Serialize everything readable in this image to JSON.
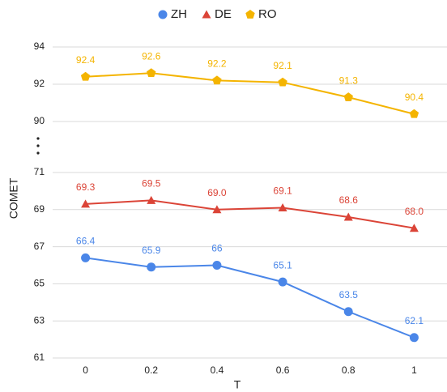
{
  "chart_data": [
    {
      "type": "line",
      "ylim": [
        90,
        94
      ],
      "yticks": [
        90,
        92,
        94
      ],
      "grid": true,
      "series": [
        {
          "name": "RO",
          "color": "#f4b400",
          "marker": "pentagon",
          "values": [
            92.4,
            92.6,
            92.2,
            92.1,
            91.3,
            90.4
          ]
        }
      ]
    },
    {
      "type": "line",
      "x_label": "T",
      "y_label": "COMET",
      "legend": "top",
      "categories": [
        "0",
        "0.2",
        "0.4",
        "0.6",
        "0.8",
        "1"
      ],
      "ylim": [
        61,
        71
      ],
      "yticks": [
        61,
        63,
        65,
        67,
        69,
        71
      ],
      "grid": true,
      "series": [
        {
          "name": "ZH",
          "color": "#4a86e8",
          "marker": "circle",
          "values": [
            66.4,
            65.9,
            66,
            65.1,
            63.5,
            62.1
          ]
        },
        {
          "name": "DE",
          "color": "#db4437",
          "marker": "triangle",
          "values": [
            69.3,
            69.5,
            69.0,
            69.1,
            68.6,
            68.0
          ],
          "value_labels": [
            "69.3",
            "69.5",
            "69.0",
            "69.1",
            "68.6",
            "68.0"
          ]
        }
      ]
    }
  ]
}
